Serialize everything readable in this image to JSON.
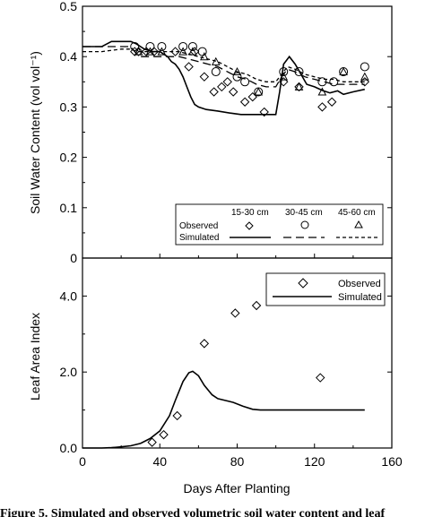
{
  "caption": "Figure 5. Simulated and observed volumetric soil water content and leaf",
  "chart_data": [
    {
      "type": "line",
      "ylabel": "Soil Water Content (vol vol⁻¹)",
      "xlim": [
        0,
        160
      ],
      "ylim": [
        0,
        0.5
      ],
      "yticks": [
        "0",
        "0.1",
        "0.2",
        "0.3",
        "0.4",
        "0.5"
      ],
      "legend": {
        "observed_label": "Observed",
        "simulated_label": "Simulated",
        "depths": [
          "15-30 cm",
          "30-45 cm",
          "45-60 cm"
        ]
      },
      "observed": [
        {
          "name": "15-30 cm",
          "marker": "diamond",
          "x": [
            27,
            29,
            33,
            37,
            48,
            55,
            58,
            63,
            68,
            72,
            75,
            78,
            84,
            88,
            94,
            104,
            112,
            124,
            129,
            146
          ],
          "y": [
            0.41,
            0.41,
            0.41,
            0.41,
            0.41,
            0.38,
            0.41,
            0.36,
            0.33,
            0.34,
            0.35,
            0.33,
            0.31,
            0.32,
            0.29,
            0.35,
            0.34,
            0.3,
            0.31,
            0.35
          ]
        },
        {
          "name": "30-45 cm",
          "marker": "circle",
          "x": [
            27,
            35,
            41,
            52,
            57,
            62,
            69,
            80,
            84,
            91,
            104,
            112,
            124,
            130,
            135,
            146
          ],
          "y": [
            0.42,
            0.42,
            0.42,
            0.42,
            0.42,
            0.41,
            0.37,
            0.36,
            0.35,
            0.33,
            0.37,
            0.37,
            0.35,
            0.35,
            0.37,
            0.38
          ]
        },
        {
          "name": "45-60 cm",
          "marker": "triangle",
          "x": [
            29,
            35,
            41,
            52,
            57,
            63,
            69,
            80,
            91,
            104,
            112,
            124,
            135,
            146
          ],
          "y": [
            0.41,
            0.41,
            0.41,
            0.41,
            0.41,
            0.4,
            0.39,
            0.37,
            0.33,
            0.36,
            0.34,
            0.33,
            0.37,
            0.36
          ]
        }
      ],
      "simulated": [
        {
          "name": "15-30 cm",
          "style": "solid",
          "x": [
            0,
            5,
            10,
            15,
            20,
            25,
            28,
            32,
            36,
            40,
            44,
            46,
            48,
            50,
            52,
            54,
            56,
            58,
            60,
            64,
            70,
            76,
            82,
            88,
            94,
            100,
            102,
            104,
            107,
            110,
            113,
            116,
            120,
            124,
            128,
            132,
            135,
            140,
            146
          ],
          "y": [
            0.42,
            0.42,
            0.42,
            0.43,
            0.43,
            0.43,
            0.425,
            0.415,
            0.41,
            0.41,
            0.4,
            0.39,
            0.385,
            0.375,
            0.36,
            0.34,
            0.32,
            0.305,
            0.3,
            0.295,
            0.292,
            0.288,
            0.285,
            0.285,
            0.285,
            0.285,
            0.33,
            0.385,
            0.4,
            0.385,
            0.365,
            0.345,
            0.34,
            0.333,
            0.328,
            0.332,
            0.325,
            0.33,
            0.335
          ]
        },
        {
          "name": "30-45 cm",
          "style": "long-dash",
          "x": [
            0,
            10,
            20,
            25,
            27,
            30,
            40,
            50,
            55,
            60,
            65,
            70,
            75,
            80,
            85,
            90,
            95,
            100,
            103,
            106,
            110,
            115,
            120,
            125,
            130,
            135,
            140,
            146
          ],
          "y": [
            0.42,
            0.42,
            0.42,
            0.42,
            0.41,
            0.4,
            0.4,
            0.4,
            0.395,
            0.39,
            0.385,
            0.38,
            0.37,
            0.36,
            0.355,
            0.345,
            0.34,
            0.34,
            0.36,
            0.375,
            0.37,
            0.36,
            0.355,
            0.35,
            0.345,
            0.345,
            0.345,
            0.345
          ]
        },
        {
          "name": "45-60 cm",
          "style": "short-dash",
          "x": [
            0,
            10,
            20,
            25,
            28,
            30,
            40,
            50,
            55,
            60,
            65,
            70,
            75,
            80,
            85,
            90,
            95,
            100,
            103,
            106,
            110,
            115,
            120,
            125,
            130,
            135,
            140,
            146
          ],
          "y": [
            0.41,
            0.41,
            0.415,
            0.415,
            0.41,
            0.41,
            0.41,
            0.41,
            0.405,
            0.4,
            0.395,
            0.39,
            0.38,
            0.37,
            0.365,
            0.355,
            0.35,
            0.35,
            0.365,
            0.38,
            0.375,
            0.365,
            0.36,
            0.355,
            0.355,
            0.35,
            0.35,
            0.35
          ]
        }
      ]
    },
    {
      "type": "line",
      "xlabel": "Days After Planting",
      "ylabel": "Leaf Area Index",
      "xlim": [
        0,
        160
      ],
      "ylim": [
        0,
        5
      ],
      "xticks": [
        "0",
        "40",
        "80",
        "120",
        "160"
      ],
      "yticks": [
        "0.0",
        "2.0",
        "4.0"
      ],
      "legend": {
        "observed_label": "Observed",
        "simulated_label": "Simulated"
      },
      "observed": {
        "marker": "diamond",
        "x": [
          36,
          42,
          49,
          63,
          79,
          90,
          123
        ],
        "y": [
          0.15,
          0.35,
          0.85,
          2.75,
          3.55,
          3.75,
          1.85
        ]
      },
      "simulated": {
        "style": "solid",
        "x": [
          0,
          10,
          15,
          20,
          25,
          30,
          35,
          40,
          45,
          48,
          52,
          55,
          57,
          60,
          63,
          67,
          70,
          74,
          78,
          83,
          88,
          92,
          100,
          110,
          120,
          130,
          140,
          146
        ],
        "y": [
          0,
          0,
          0.01,
          0.03,
          0.06,
          0.12,
          0.25,
          0.45,
          0.85,
          1.25,
          1.75,
          1.98,
          2.02,
          1.9,
          1.65,
          1.4,
          1.3,
          1.25,
          1.2,
          1.1,
          1.02,
          1.0,
          1.0,
          1.0,
          1.0,
          1.0,
          1.0,
          1.0
        ]
      }
    }
  ]
}
